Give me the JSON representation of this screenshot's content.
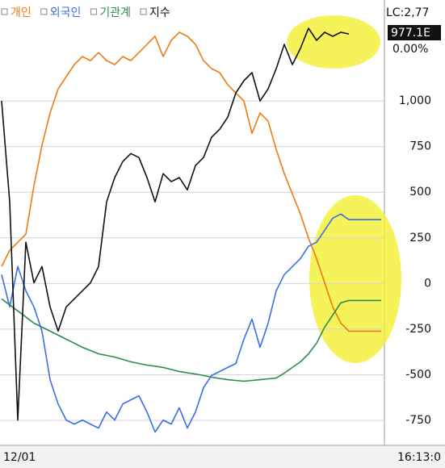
{
  "chart_data": {
    "type": "line",
    "categories": [
      "12/01",
      null,
      null,
      null,
      null,
      null,
      null,
      null,
      null,
      null,
      null,
      null,
      null,
      null,
      null,
      null,
      null,
      null,
      null,
      null,
      null,
      null,
      null,
      null,
      null,
      null,
      null,
      null,
      null,
      null,
      null,
      null,
      null,
      null,
      null,
      null,
      null,
      null,
      null,
      null,
      null,
      null,
      null,
      null,
      null,
      null,
      null,
      null
    ],
    "time_label": "16:13:0",
    "info": {
      "lc": "LC:2,77",
      "price": "977.1E",
      "change": "0.00%"
    },
    "ylim": [
      -878,
      1553
    ],
    "yticks": [
      {
        "value": 1000,
        "label": "1,000"
      },
      750,
      500,
      250,
      0,
      -250,
      -500,
      -750
    ],
    "grid": true,
    "series": [
      {
        "name": "개인",
        "color": "#f07a10",
        "values": [
          93,
          181,
          226,
          270,
          535,
          757,
          934,
          1066,
          1133,
          1199,
          1243,
          1221,
          1265,
          1221,
          1199,
          1243,
          1221,
          1265,
          1310,
          1354,
          1243,
          1332,
          1376,
          1354,
          1310,
          1221,
          1177,
          1155,
          1089,
          1044,
          1000,
          823,
          934,
          889,
          735,
          602,
          491,
          381,
          248,
          137,
          4,
          -128,
          -217,
          -261,
          -261,
          -261,
          -261,
          -261
        ]
      },
      {
        "name": "외국인",
        "color": "#3a6ee8",
        "values": [
          49,
          -128,
          93,
          -40,
          -128,
          -261,
          -527,
          -660,
          -748,
          -770,
          -748,
          -770,
          -792,
          -704,
          -748,
          -660,
          -637,
          -615,
          -704,
          -814,
          -748,
          -770,
          -681,
          -792,
          -704,
          -571,
          -504,
          -482,
          -460,
          -438,
          -305,
          -195,
          -350,
          -217,
          -40,
          49,
          93,
          137,
          204,
          226,
          292,
          358,
          381,
          350,
          350,
          350,
          350,
          350
        ]
      },
      {
        "name": "기관계",
        "color": "#2e8b4a",
        "values": [
          -84,
          -117,
          -150,
          -183,
          -217,
          -239,
          -261,
          -283,
          -305,
          -327,
          -350,
          -367,
          -385,
          -394,
          -403,
          -416,
          -429,
          -438,
          -447,
          -453,
          -460,
          -471,
          -482,
          -489,
          -496,
          -504,
          -513,
          -520,
          -527,
          -531,
          -535,
          -531,
          -527,
          -522,
          -518,
          -491,
          -460,
          -429,
          -385,
          -327,
          -239,
          -173,
          -106,
          -93,
          -93,
          -93,
          -93,
          -93
        ]
      },
      {
        "name": "지수",
        "color": "#111111",
        "values": [
          1000,
          447,
          -748,
          226,
          4,
          93,
          -128,
          -261,
          -128,
          -84,
          -40,
          4,
          93,
          447,
          580,
          668,
          712,
          690,
          580,
          447,
          602,
          558,
          580,
          513,
          646,
          690,
          801,
          845,
          911,
          1044,
          1111,
          1155,
          1000,
          1066,
          1177,
          1310,
          1199,
          1288,
          1398,
          1332,
          1376,
          1354,
          1376,
          1367,
          null,
          null,
          null,
          null
        ]
      }
    ]
  }
}
